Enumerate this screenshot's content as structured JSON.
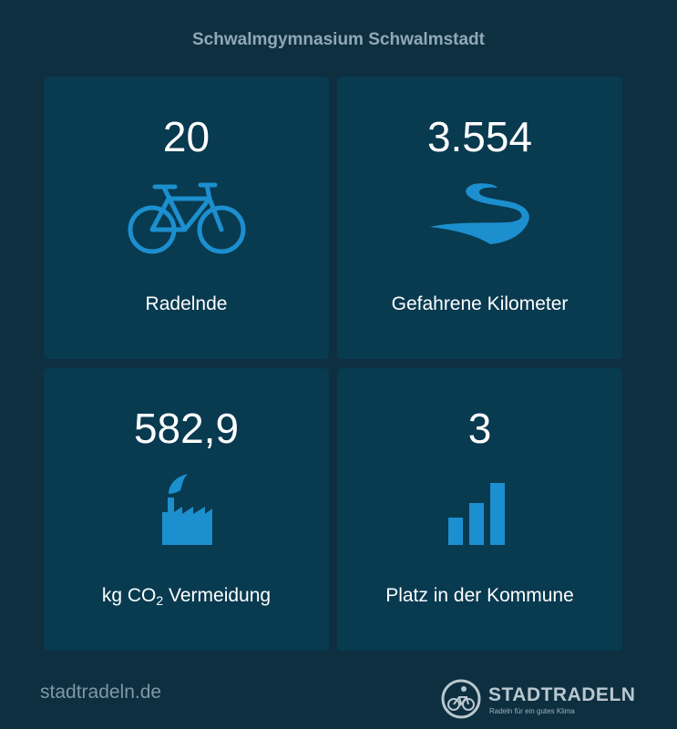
{
  "title": "Schwalmgymnasium Schwalmstadt",
  "colors": {
    "background": "#0d2f40",
    "card": "#083a50",
    "accent": "#1c8fcf"
  },
  "stats": [
    {
      "value": "20",
      "label": "Radelnde",
      "icon": "bicycle-icon"
    },
    {
      "value": "3.554",
      "label": "Gefahrene Kilometer",
      "icon": "road-icon"
    },
    {
      "value": "582,9",
      "label_prefix": "kg CO",
      "label_sub": "2",
      "label_suffix": " Vermeidung",
      "icon": "factory-icon"
    },
    {
      "value": "3",
      "label": "Platz in der Kommune",
      "icon": "ranking-bars-icon"
    }
  ],
  "footer": {
    "url": "stadtradeln.de",
    "brand": "STADTRADELN",
    "tagline": "Radeln für ein gutes Klima"
  }
}
